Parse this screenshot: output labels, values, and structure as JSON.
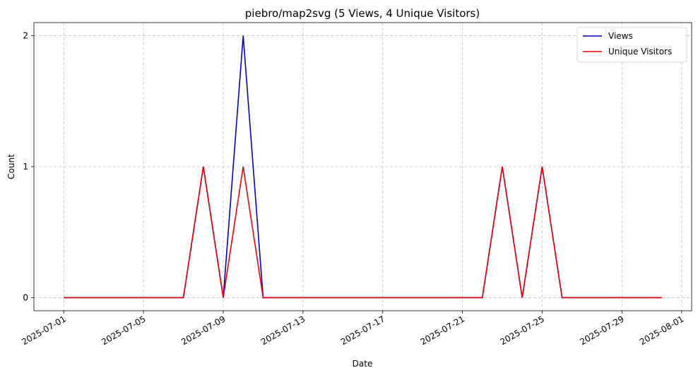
{
  "chart_data": {
    "type": "line",
    "title": "piebro/map2svg (5 Views, 4 Unique Visitors)",
    "xlabel": "Date",
    "ylabel": "Count",
    "x": [
      "2025-07-01",
      "2025-07-02",
      "2025-07-03",
      "2025-07-04",
      "2025-07-05",
      "2025-07-06",
      "2025-07-07",
      "2025-07-08",
      "2025-07-09",
      "2025-07-10",
      "2025-07-11",
      "2025-07-12",
      "2025-07-13",
      "2025-07-14",
      "2025-07-15",
      "2025-07-16",
      "2025-07-17",
      "2025-07-18",
      "2025-07-19",
      "2025-07-20",
      "2025-07-21",
      "2025-07-22",
      "2025-07-23",
      "2025-07-24",
      "2025-07-25",
      "2025-07-26",
      "2025-07-27",
      "2025-07-28",
      "2025-07-29",
      "2025-07-30",
      "2025-07-31"
    ],
    "series": [
      {
        "name": "Views",
        "color": "#0000cc",
        "values": [
          0,
          0,
          0,
          0,
          0,
          0,
          0,
          1,
          0,
          2,
          0,
          0,
          0,
          0,
          0,
          0,
          0,
          0,
          0,
          0,
          0,
          0,
          1,
          0,
          1,
          0,
          0,
          0,
          0,
          0,
          0
        ]
      },
      {
        "name": "Unique Visitors",
        "color": "#ee0000",
        "values": [
          0,
          0,
          0,
          0,
          0,
          0,
          0,
          1,
          0,
          1,
          0,
          0,
          0,
          0,
          0,
          0,
          0,
          0,
          0,
          0,
          0,
          0,
          1,
          0,
          1,
          0,
          0,
          0,
          0,
          0,
          0
        ]
      }
    ],
    "xlim": [
      "2025-06-29.5",
      "2025-08-01.5"
    ],
    "ylim": [
      -0.1,
      2.1
    ],
    "x_ticks": [
      "2025-07-01",
      "2025-07-05",
      "2025-07-09",
      "2025-07-13",
      "2025-07-17",
      "2025-07-21",
      "2025-07-25",
      "2025-07-29",
      "2025-08-01"
    ],
    "y_ticks": [
      "0",
      "1",
      "2"
    ],
    "grid": true,
    "legend_position": "top-right"
  }
}
